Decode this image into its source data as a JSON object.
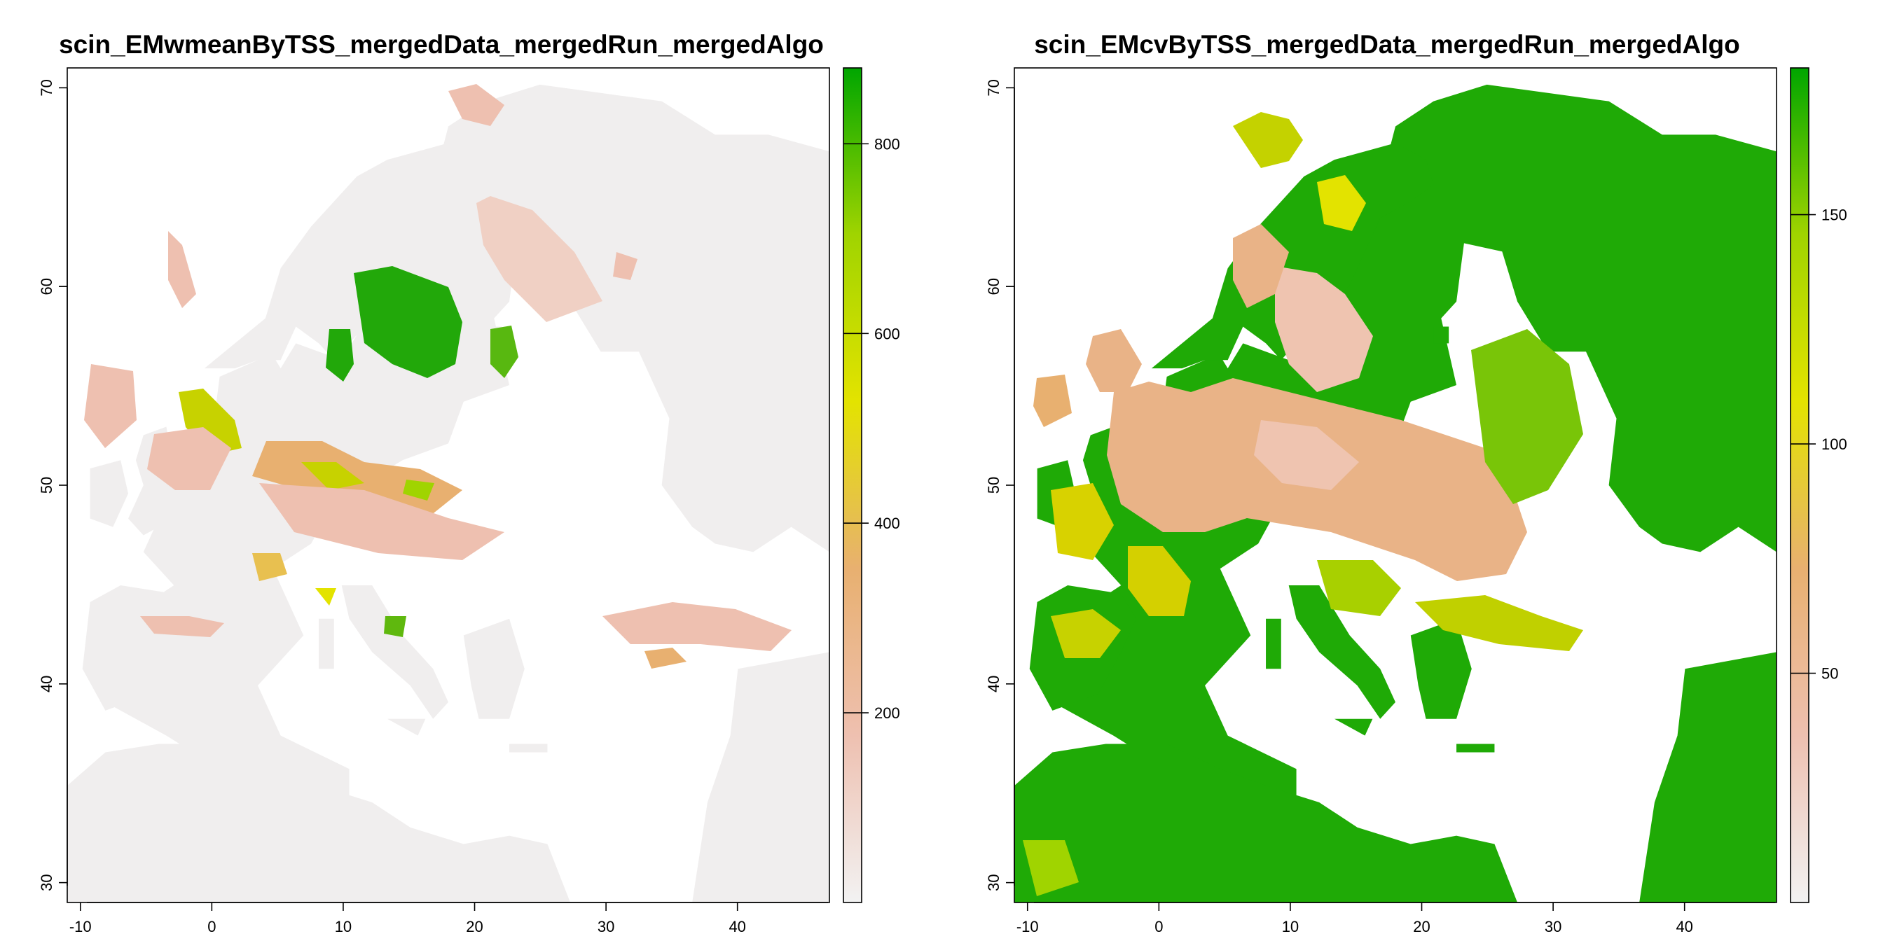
{
  "chart_data": [
    {
      "type": "heatmap",
      "title": "scin_EMwmeanByTSS_mergedData_mergedRun_mergedAlgo",
      "xlabel": "",
      "ylabel": "",
      "xlim": [
        -11,
        47
      ],
      "ylim": [
        29,
        71
      ],
      "x_ticks": [
        "-10",
        "0",
        "10",
        "20",
        "30",
        "40"
      ],
      "y_ticks": [
        "30",
        "40",
        "50",
        "60",
        "70"
      ],
      "x_tick_values": [
        -10,
        0,
        10,
        20,
        30,
        40
      ],
      "y_tick_values": [
        30,
        40,
        50,
        60,
        70
      ],
      "legend": {
        "position": "right",
        "range": [
          0,
          880
        ],
        "ticks": [
          "200",
          "400",
          "600",
          "800"
        ],
        "tick_values": [
          200,
          400,
          600,
          800
        ],
        "colors": [
          "#f2f2f2",
          "#eec0b0",
          "#e8b070",
          "#e3e300",
          "#a0d400",
          "#00a600"
        ]
      },
      "dominant_value": 30
    },
    {
      "type": "heatmap",
      "title": "scin_EMcvByTSS_mergedData_mergedRun_mergedAlgo",
      "xlabel": "",
      "ylabel": "",
      "xlim": [
        -11,
        47
      ],
      "ylim": [
        29,
        71
      ],
      "x_ticks": [
        "-10",
        "0",
        "10",
        "20",
        "30",
        "40"
      ],
      "y_ticks": [
        "30",
        "40",
        "50",
        "60",
        "70"
      ],
      "x_tick_values": [
        -10,
        0,
        10,
        20,
        30,
        40
      ],
      "y_tick_values": [
        30,
        40,
        50,
        60,
        70
      ],
      "legend": {
        "position": "right",
        "range": [
          0,
          182
        ],
        "ticks": [
          "50",
          "100",
          "150"
        ],
        "tick_values": [
          50,
          100,
          150
        ],
        "colors": [
          "#f2f2f2",
          "#eec0b0",
          "#e8b070",
          "#e3e300",
          "#a0d400",
          "#00a600"
        ]
      },
      "dominant_value": 175
    }
  ]
}
